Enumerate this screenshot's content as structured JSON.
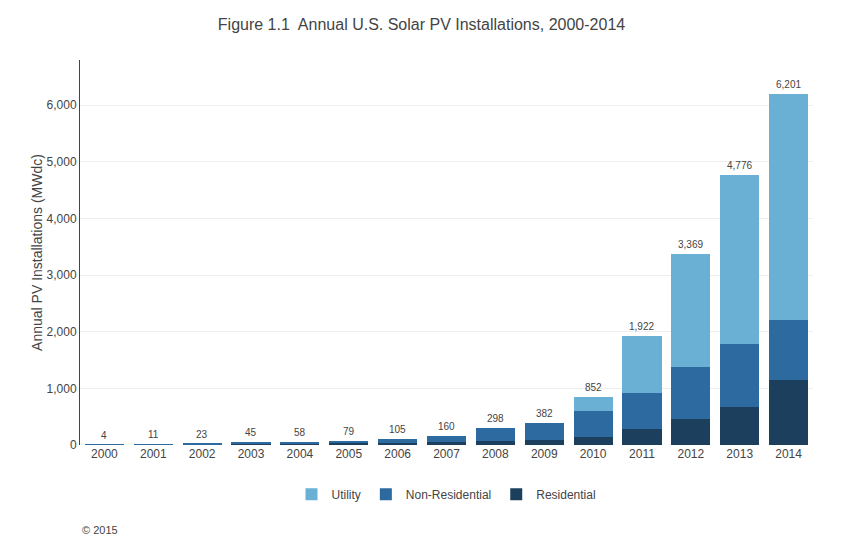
{
  "chart_data": {
    "type": "bar",
    "stacked": true,
    "title": "Figure 1.1  Annual U.S. Solar PV Installations, 2000-2014",
    "ylabel": "Annual PV Installations (MWdc)",
    "categories": [
      "2000",
      "2001",
      "2002",
      "2003",
      "2004",
      "2005",
      "2006",
      "2007",
      "2008",
      "2009",
      "2010",
      "2011",
      "2012",
      "2013",
      "2014"
    ],
    "series": [
      {
        "name": "Residential",
        "color": "#1c3f5e",
        "values": [
          2,
          5,
          10,
          18,
          22,
          30,
          38,
          50,
          70,
          90,
          150,
          280,
          460,
          680,
          1150
        ]
      },
      {
        "name": "Non-Residential",
        "color": "#2d6a9f",
        "values": [
          2,
          6,
          13,
          27,
          36,
          49,
          67,
          110,
          228,
          292,
          442,
          642,
          925,
          1096,
          1051
        ]
      },
      {
        "name": "Utility",
        "color": "#6aafd4",
        "values": [
          0,
          0,
          0,
          0,
          0,
          0,
          0,
          0,
          0,
          0,
          260,
          1000,
          1984,
          3000,
          4000
        ]
      }
    ],
    "totals": [
      4,
      11,
      23,
      45,
      58,
      79,
      105,
      160,
      298,
      382,
      852,
      1922,
      3369,
      4776,
      6201
    ],
    "total_labels": [
      "4",
      "11",
      "23",
      "45",
      "58",
      "79",
      "105",
      "160",
      "298",
      "382",
      "852",
      "1,922",
      "3,369",
      "4,776",
      "6,201"
    ],
    "ylim": [
      0,
      6800
    ],
    "yticks": [
      0,
      {
        "value": 1000,
        "label": "1,000"
      },
      {
        "value": 2000,
        "label": "2,000"
      },
      {
        "value": 3000,
        "label": "3,000"
      },
      {
        "value": 4000,
        "label": "4,000"
      },
      {
        "value": 5000,
        "label": "5,000"
      },
      {
        "value": 6000,
        "label": "6,000"
      }
    ],
    "grid": true,
    "legend": "bottom",
    "annotations": [
      "© 2015"
    ]
  }
}
